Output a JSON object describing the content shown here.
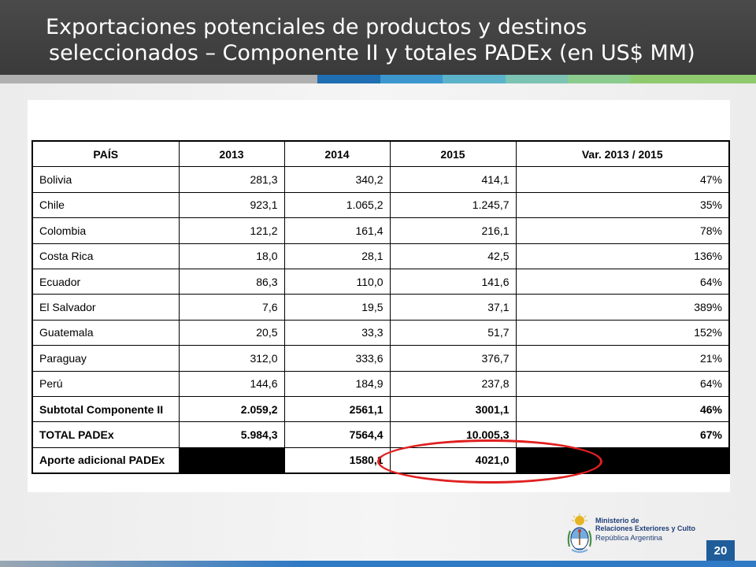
{
  "header": {
    "title_line1": "Exportaciones potenciales de productos y destinos",
    "title_line2": "seleccionados – Componente II y totales PADEx (en US$ MM)"
  },
  "colors": {
    "strip": [
      "#1f6fb2",
      "#3d97cf",
      "#5cb2c9",
      "#7cc3b3",
      "#8ccb8e",
      "#8fcb6e"
    ],
    "header_bg": "#3a3a3a",
    "highlight": "#e02020",
    "page_badge": "#1f5c9a"
  },
  "table": {
    "headers": [
      "PAÍS",
      "2013",
      "2014",
      "2015",
      "Var. 2013 / 2015"
    ],
    "rows": [
      [
        "Bolivia",
        "281,3",
        "340,2",
        "414,1",
        "47%"
      ],
      [
        "Chile",
        "923,1",
        "1.065,2",
        "1.245,7",
        "35%"
      ],
      [
        "Colombia",
        "121,2",
        "161,4",
        "216,1",
        "78%"
      ],
      [
        "Costa Rica",
        "18,0",
        "28,1",
        "42,5",
        "136%"
      ],
      [
        "Ecuador",
        "86,3",
        "110,0",
        "141,6",
        "64%"
      ],
      [
        "El Salvador",
        "7,6",
        "19,5",
        "37,1",
        "389%"
      ],
      [
        "Guatemala",
        "20,5",
        "33,3",
        "51,7",
        "152%"
      ],
      [
        "Paraguay",
        "312,0",
        "333,6",
        "376,7",
        "21%"
      ],
      [
        "Perú",
        "144,6",
        "184,9",
        "237,8",
        "64%"
      ]
    ],
    "subtotal": [
      "Subtotal Componente II",
      "2.059,2",
      "2561,1",
      "3001,1",
      "46%"
    ],
    "total": [
      "TOTAL PADEx",
      "5.984,3",
      "7564,4",
      "10.005,3",
      "67%"
    ],
    "aporte": [
      "Aporte adicional PADEx",
      "",
      "1580,1",
      "4021,0",
      ""
    ]
  },
  "logo": {
    "line1": "Ministerio de",
    "line2": "Relaciones Exteriores y Culto",
    "line3": "República Argentina",
    "icon": "coat-of-arms-icon"
  },
  "page_number": "20"
}
